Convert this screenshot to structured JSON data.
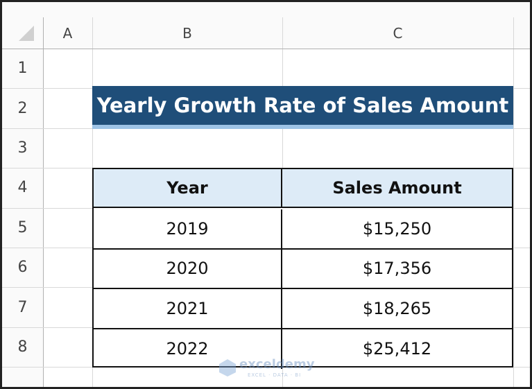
{
  "column_headers": [
    "A",
    "B",
    "C"
  ],
  "row_headers": [
    "1",
    "2",
    "3",
    "4",
    "5",
    "6",
    "7",
    "8"
  ],
  "title": "Yearly Growth Rate of Sales Amount",
  "table": {
    "header": [
      "Year",
      "Sales Amount"
    ],
    "rows": [
      [
        "2019",
        "$15,250"
      ],
      [
        "2020",
        "$17,356"
      ],
      [
        "2021",
        "$18,265"
      ],
      [
        "2022",
        "$25,412"
      ]
    ]
  },
  "watermark": {
    "name": "exceldemy",
    "tagline": "EXCEL · DATA · BI"
  }
}
